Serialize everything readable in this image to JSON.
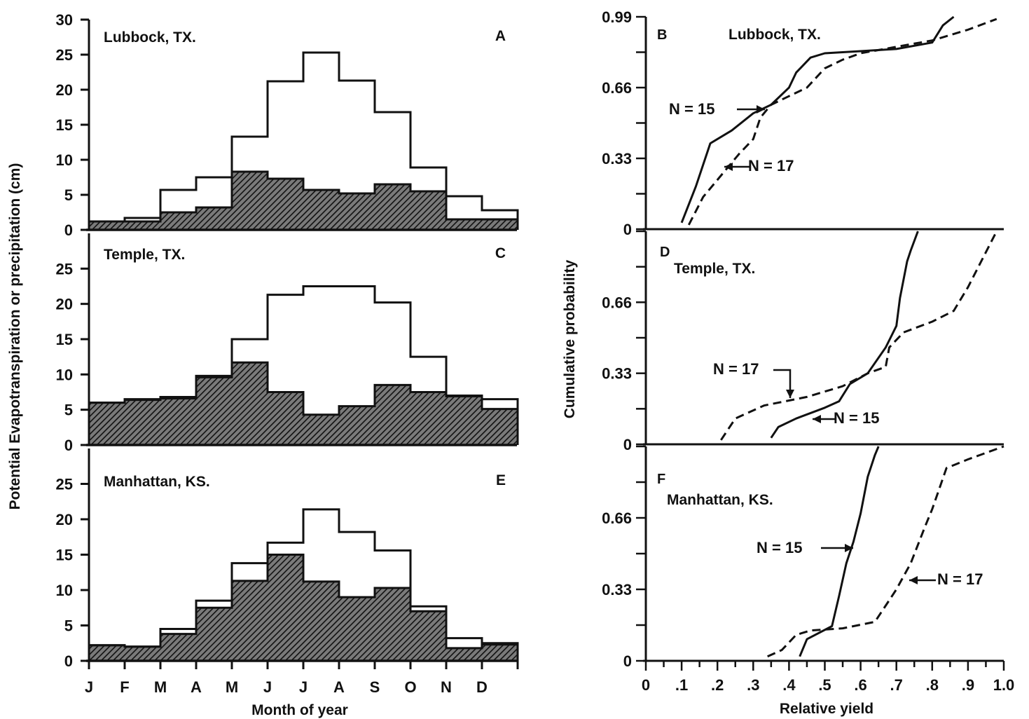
{
  "figure": {
    "left_ylabel": "Potential Evapotranspiration or precipitation (cm)",
    "left_xlabel": "Month of year",
    "right_ylabel": "Cumulative probability",
    "right_xlabel": "Relative yield"
  },
  "chart_data": [
    {
      "type": "bar",
      "panel": "A",
      "title": "Lubbock, TX.",
      "categories": [
        "J",
        "F",
        "M",
        "A",
        "M",
        "J",
        "J",
        "A",
        "S",
        "O",
        "N",
        "D"
      ],
      "xlabel": "",
      "ylabel": "Potential Evapotranspiration or precipitation (cm)",
      "ylim": [
        0,
        30
      ],
      "yticks": [
        "0",
        "5",
        "10",
        "15",
        "20",
        "25",
        "30"
      ],
      "series": [
        {
          "values": [
            1.2,
            1.7,
            5.7,
            7.5,
            13.3,
            21.2,
            25.3,
            21.3,
            16.8,
            8.9,
            4.8,
            2.8
          ],
          "style": "outline"
        },
        {
          "values": [
            1.2,
            1.2,
            2.5,
            3.2,
            8.3,
            7.3,
            5.7,
            5.2,
            6.5,
            5.5,
            1.5,
            1.5
          ],
          "style": "hatched"
        }
      ]
    },
    {
      "type": "bar",
      "panel": "C",
      "title": "Temple, TX.",
      "categories": [
        "J",
        "F",
        "M",
        "A",
        "M",
        "J",
        "J",
        "A",
        "S",
        "O",
        "N",
        "D"
      ],
      "xlabel": "",
      "ylabel": "Potential Evapotranspiration or precipitation (cm)",
      "ylim": [
        0,
        30
      ],
      "yticks": [
        "0",
        "5",
        "10",
        "15",
        "20",
        "25"
      ],
      "series": [
        {
          "values": [
            6.0,
            6.5,
            6.8,
            9.8,
            15.0,
            21.3,
            22.5,
            22.5,
            20.2,
            12.5,
            7.0,
            6.5
          ],
          "style": "outline"
        },
        {
          "values": [
            6.0,
            6.4,
            6.6,
            9.6,
            11.7,
            7.5,
            4.3,
            5.5,
            8.5,
            7.5,
            6.9,
            5.1
          ],
          "style": "hatched"
        }
      ]
    },
    {
      "type": "bar",
      "panel": "E",
      "title": "Manhattan, KS.",
      "categories": [
        "J",
        "F",
        "M",
        "A",
        "M",
        "J",
        "J",
        "A",
        "S",
        "O",
        "N",
        "D"
      ],
      "xlabel": "Month of year",
      "ylabel": "Potential Evapotranspiration or precipitation (cm)",
      "ylim": [
        0,
        30
      ],
      "yticks": [
        "0",
        "5",
        "10",
        "15",
        "20",
        "25"
      ],
      "series": [
        {
          "values": [
            2.2,
            2.0,
            4.5,
            8.5,
            13.8,
            16.7,
            21.4,
            18.2,
            15.6,
            7.7,
            3.2,
            2.5
          ],
          "style": "outline"
        },
        {
          "values": [
            2.2,
            2.0,
            3.8,
            7.5,
            11.3,
            15.0,
            11.2,
            9.0,
            10.3,
            7.0,
            1.8,
            2.3
          ],
          "style": "hatched"
        }
      ]
    },
    {
      "type": "line",
      "panel": "B",
      "title": "Lubbock, TX.",
      "xlabel": "",
      "ylabel": "Cumulative probability",
      "xlim": [
        0,
        1.0
      ],
      "ylim": [
        0,
        0.99
      ],
      "yticks": [
        "0",
        "0.33",
        "0.66",
        "0.99"
      ],
      "series": [
        {
          "name": "N = 15",
          "style": "solid",
          "x": [
            0.1,
            0.14,
            0.18,
            0.24,
            0.3,
            0.35,
            0.4,
            0.42,
            0.46,
            0.5,
            0.6,
            0.7,
            0.8,
            0.83,
            0.86
          ],
          "y": [
            0.03,
            0.2,
            0.4,
            0.46,
            0.54,
            0.58,
            0.66,
            0.73,
            0.8,
            0.82,
            0.83,
            0.84,
            0.87,
            0.95,
            0.99
          ]
        },
        {
          "name": "N = 17",
          "style": "dashed",
          "x": [
            0.12,
            0.16,
            0.21,
            0.26,
            0.3,
            0.32,
            0.35,
            0.4,
            0.45,
            0.5,
            0.55,
            0.6,
            0.7,
            0.8,
            0.9,
            0.98
          ],
          "y": [
            0.02,
            0.15,
            0.25,
            0.35,
            0.42,
            0.52,
            0.58,
            0.62,
            0.66,
            0.75,
            0.79,
            0.82,
            0.85,
            0.88,
            0.93,
            0.98
          ]
        }
      ]
    },
    {
      "type": "line",
      "panel": "D",
      "title": "Temple, TX.",
      "xlabel": "",
      "ylabel": "Cumulative probability",
      "xlim": [
        0,
        1.0
      ],
      "ylim": [
        0,
        0.99
      ],
      "yticks": [
        "0",
        "0.33",
        "0.66"
      ],
      "series": [
        {
          "name": "N = 15",
          "style": "solid",
          "x": [
            0.35,
            0.37,
            0.42,
            0.5,
            0.54,
            0.57,
            0.62,
            0.67,
            0.7,
            0.71,
            0.73,
            0.74,
            0.76
          ],
          "y": [
            0.03,
            0.08,
            0.12,
            0.17,
            0.2,
            0.28,
            0.33,
            0.45,
            0.55,
            0.68,
            0.85,
            0.9,
            0.99
          ]
        },
        {
          "name": "N = 17",
          "style": "dashed",
          "x": [
            0.21,
            0.25,
            0.33,
            0.45,
            0.55,
            0.62,
            0.67,
            0.68,
            0.72,
            0.8,
            0.86,
            0.9,
            0.94,
            0.98
          ],
          "y": [
            0.02,
            0.12,
            0.18,
            0.22,
            0.27,
            0.33,
            0.36,
            0.45,
            0.52,
            0.57,
            0.62,
            0.73,
            0.86,
            0.99
          ]
        }
      ]
    },
    {
      "type": "line",
      "panel": "F",
      "title": "Manhattan, KS.",
      "xlabel": "Relative yield",
      "ylabel": "Cumulative probability",
      "xlim": [
        0,
        1.0
      ],
      "ylim": [
        0,
        0.99
      ],
      "xticks": [
        "0",
        ".1",
        ".2",
        ".3",
        ".4",
        ".5",
        ".6",
        ".7",
        ".8",
        ".9",
        "1.0"
      ],
      "yticks": [
        "0",
        "0.33",
        "0.66"
      ],
      "series": [
        {
          "name": "N = 15",
          "style": "solid",
          "x": [
            0.43,
            0.45,
            0.52,
            0.54,
            0.56,
            0.58,
            0.6,
            0.62,
            0.64,
            0.65
          ],
          "y": [
            0.02,
            0.1,
            0.16,
            0.3,
            0.45,
            0.55,
            0.68,
            0.85,
            0.95,
            0.99
          ]
        },
        {
          "name": "N = 17",
          "style": "dashed",
          "x": [
            0.34,
            0.38,
            0.42,
            0.46,
            0.55,
            0.64,
            0.68,
            0.7,
            0.74,
            0.78,
            0.8,
            0.84,
            0.9,
            1.0
          ],
          "y": [
            0.02,
            0.05,
            0.12,
            0.14,
            0.15,
            0.18,
            0.28,
            0.33,
            0.45,
            0.62,
            0.7,
            0.89,
            0.93,
            0.99
          ]
        }
      ]
    }
  ],
  "panel_letters": {
    "A": "A",
    "B": "B",
    "C": "C",
    "D": "D",
    "E": "E",
    "F": "F"
  }
}
